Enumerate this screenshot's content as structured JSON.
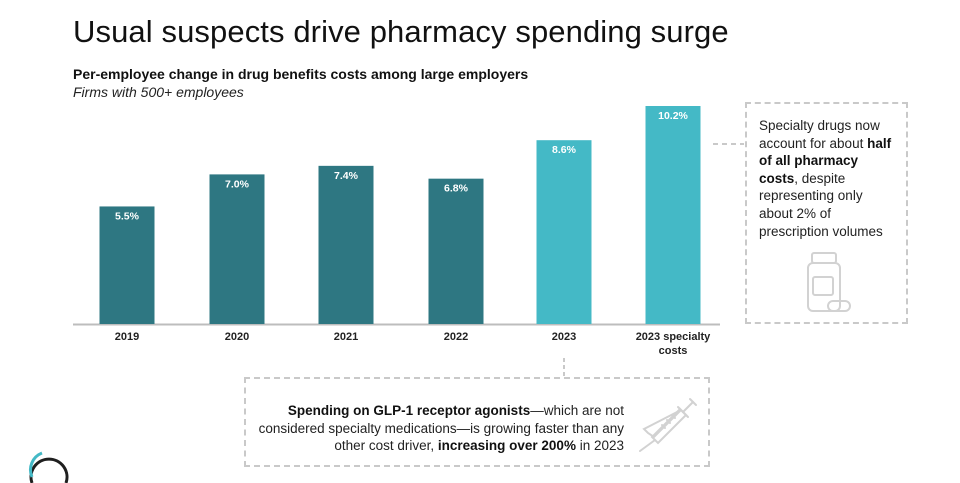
{
  "title": "Usual suspects drive pharmacy spending surge",
  "subtitle": "Per-employee change in drug benefits costs among large employers",
  "subnote": "Firms with 500+ employees",
  "chart_data": {
    "type": "bar",
    "categories": [
      "2019",
      "2020",
      "2021",
      "2022",
      "2023",
      "2023 specialty costs"
    ],
    "values": [
      5.5,
      7.0,
      7.4,
      6.8,
      8.6,
      10.2
    ],
    "data_labels": [
      "5.5%",
      "7.0%",
      "7.4%",
      "6.8%",
      "8.6%",
      "10.2%"
    ],
    "ylim": [
      0,
      10.2
    ],
    "grid": false,
    "colors": [
      "#2e7782",
      "#2e7782",
      "#2e7782",
      "#2e7782",
      "#44b9c6",
      "#44b9c6"
    ]
  },
  "callouts": {
    "specialty": {
      "pre": "Specialty drugs now account for about ",
      "bold": "half of all pharmacy costs",
      "post": ", despite representing only about 2% of prescription volumes",
      "icon": "pill-bottle-icon"
    },
    "glp1": {
      "bold1": "Spending on GLP-1 receptor agonists",
      "mid": "—which are not considered specialty medications—is growing faster than any other cost driver, ",
      "bold2": "increasing over 200%",
      "post": " in 2023",
      "icon": "syringe-icon"
    }
  },
  "colors": {
    "dark_teal": "#2e7782",
    "light_teal": "#44b9c6",
    "axis": "#bdbdbd",
    "dash": "#c9c9c9"
  }
}
